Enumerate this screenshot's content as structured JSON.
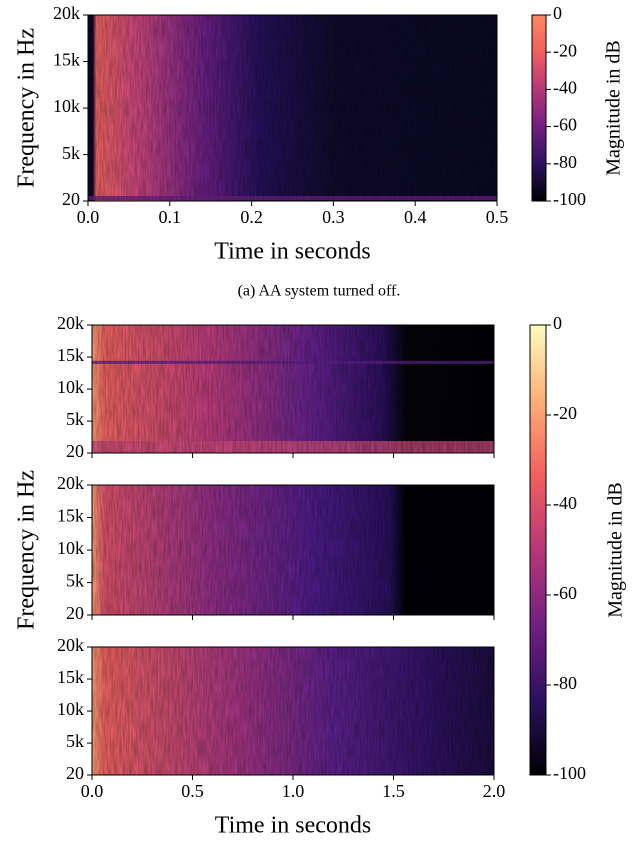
{
  "caption": "(a) AA system turned off.",
  "chart_data": [
    {
      "type": "heatmap",
      "xlabel": "Time in seconds",
      "ylabel": "Frequency in Hz",
      "xlim": [
        0,
        0.5
      ],
      "xticks": [
        {
          "value": 0,
          "label": "0.0"
        },
        0.1,
        0.2,
        0.3,
        0.4,
        0.5
      ],
      "ylim": [
        20,
        20000
      ],
      "yticks": [
        20,
        {
          "value": 5000,
          "label": "5k"
        },
        {
          "value": 10000,
          "label": "10k"
        },
        {
          "value": 15000,
          "label": "15k"
        },
        {
          "value": 20000,
          "label": "20k"
        }
      ],
      "colorbar": {
        "label": "Magnitude in dB",
        "lim": [
          -100,
          0
        ],
        "ticks": [
          0,
          -20,
          -40,
          -60,
          -80,
          -100
        ],
        "colors": [
          "#000004",
          "#2c115f",
          "#721f81",
          "#b73779",
          "#f1605d",
          "#fb8861"
        ]
      }
    },
    {
      "type": "heatmap",
      "xlim": [
        0,
        2
      ],
      "ylim": [
        20,
        20000
      ],
      "yticks": [
        20,
        {
          "value": 5000,
          "label": "5k"
        },
        {
          "value": 10000,
          "label": "10k"
        },
        {
          "value": 15000,
          "label": "15k"
        },
        {
          "value": 20000,
          "label": "20k"
        }
      ]
    },
    {
      "type": "heatmap",
      "ylabel": "Frequency in Hz",
      "xlim": [
        0,
        2
      ],
      "ylim": [
        20,
        20000
      ],
      "yticks": [
        20,
        {
          "value": 5000,
          "label": "5k"
        },
        {
          "value": 10000,
          "label": "10k"
        },
        {
          "value": 15000,
          "label": "15k"
        },
        {
          "value": 20000,
          "label": "20k"
        }
      ]
    },
    {
      "type": "heatmap",
      "xlabel": "Time in seconds",
      "xlim": [
        0,
        2
      ],
      "xticks": [
        {
          "value": 0,
          "label": "0.0"
        },
        0.5,
        {
          "value": 1,
          "label": "1.0"
        },
        1.5,
        {
          "value": 2,
          "label": "2.0"
        }
      ],
      "ylim": [
        20,
        20000
      ],
      "yticks": [
        20,
        {
          "value": 5000,
          "label": "5k"
        },
        {
          "value": 10000,
          "label": "10k"
        },
        {
          "value": 15000,
          "label": "15k"
        },
        {
          "value": 20000,
          "label": "20k"
        }
      ],
      "colorbar": {
        "label": "Magnitude in dB",
        "lim": [
          -100,
          0
        ],
        "ticks": [
          0,
          -20,
          -40,
          -60,
          -80,
          -100
        ],
        "colors": [
          "#000004",
          "#2c115f",
          "#721f81",
          "#b73779",
          "#f1605d",
          "#feaf77",
          "#fcfdbf"
        ]
      }
    }
  ]
}
